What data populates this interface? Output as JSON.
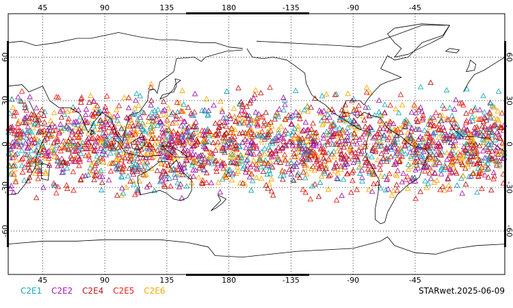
{
  "map": {
    "projection": "equirectangular",
    "central_longitude": 180,
    "lon_range": [
      20,
      380
    ],
    "lat_range": [
      -90,
      90
    ],
    "top_ticks": [
      "45",
      "90",
      "135",
      "180",
      "-135",
      "-90",
      "-45"
    ],
    "bottom_ticks": [
      "45",
      "90",
      "135",
      "180",
      "-135",
      "-90",
      "-45"
    ],
    "lat_ticks": [
      "60",
      "30",
      "0",
      "-30",
      "-60"
    ],
    "tick_lons": [
      45,
      90,
      135,
      180,
      225,
      270,
      315
    ],
    "tick_lats": [
      60,
      30,
      0,
      -30,
      -60
    ],
    "grid": "dotted",
    "coastline_color": "#000000",
    "observations": {
      "marker": "triangle-outline",
      "lat_band": [
        -45,
        45
      ],
      "density": "very high"
    }
  },
  "legend": {
    "items": [
      {
        "label": "C2E1",
        "color": "#1aa9b8"
      },
      {
        "label": "C2E2",
        "color": "#a01ab0"
      },
      {
        "label": "C2E4",
        "color": "#b01a1a"
      },
      {
        "label": "C2E5",
        "color": "#e8201a"
      },
      {
        "label": "C2E6",
        "color": "#f5a800"
      }
    ]
  },
  "stamp": "STARwet.2025-06-09"
}
